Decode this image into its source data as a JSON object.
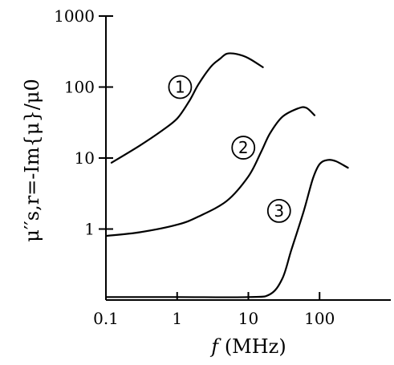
{
  "chart_data": {
    "type": "line",
    "x_scale": "log",
    "y_scale": "log",
    "xlim": [
      0.1,
      1000
    ],
    "ylim": [
      0.1,
      1000
    ],
    "grid": false,
    "x_ticks": [
      "0.1",
      "1",
      "10",
      "100"
    ],
    "y_ticks": [
      "1",
      "10",
      "100",
      "1000"
    ],
    "xlabel": {
      "italic": "f",
      "rest": " (MHz)"
    },
    "ylabel": "μ′′s,r=-Im{μ}/μ0",
    "series": [
      {
        "name": "1",
        "x": [
          0.12,
          0.3,
          0.6,
          1.0,
          1.5,
          2.0,
          3.0,
          4.0,
          5.0,
          7.0,
          10.0,
          16.0
        ],
        "y": [
          8.6,
          15,
          24,
          36,
          65,
          110,
          195,
          250,
          295,
          290,
          255,
          190
        ]
      },
      {
        "name": "2",
        "x": [
          0.1,
          0.3,
          1.0,
          2.0,
          5.0,
          10.0,
          15.0,
          20.0,
          30.0,
          50.0,
          65.0,
          85.0
        ],
        "y": [
          0.8,
          0.9,
          1.15,
          1.5,
          2.5,
          5.5,
          12,
          22,
          38,
          50,
          51,
          40
        ]
      },
      {
        "name": "3",
        "x": [
          0.1,
          1.0,
          10.0,
          20.0,
          30.0,
          40.0,
          60.0,
          80.0,
          100.0,
          130.0,
          170.0,
          250.0
        ],
        "y": [
          0.11,
          0.11,
          0.11,
          0.12,
          0.2,
          0.5,
          1.8,
          5.0,
          8.2,
          9.4,
          9.0,
          7.3
        ]
      }
    ],
    "markers": [
      {
        "label": "1",
        "x": 1.1,
        "y": 100
      },
      {
        "label": "2",
        "x": 8.5,
        "y": 14
      },
      {
        "label": "3",
        "x": 27,
        "y": 1.8
      }
    ]
  }
}
